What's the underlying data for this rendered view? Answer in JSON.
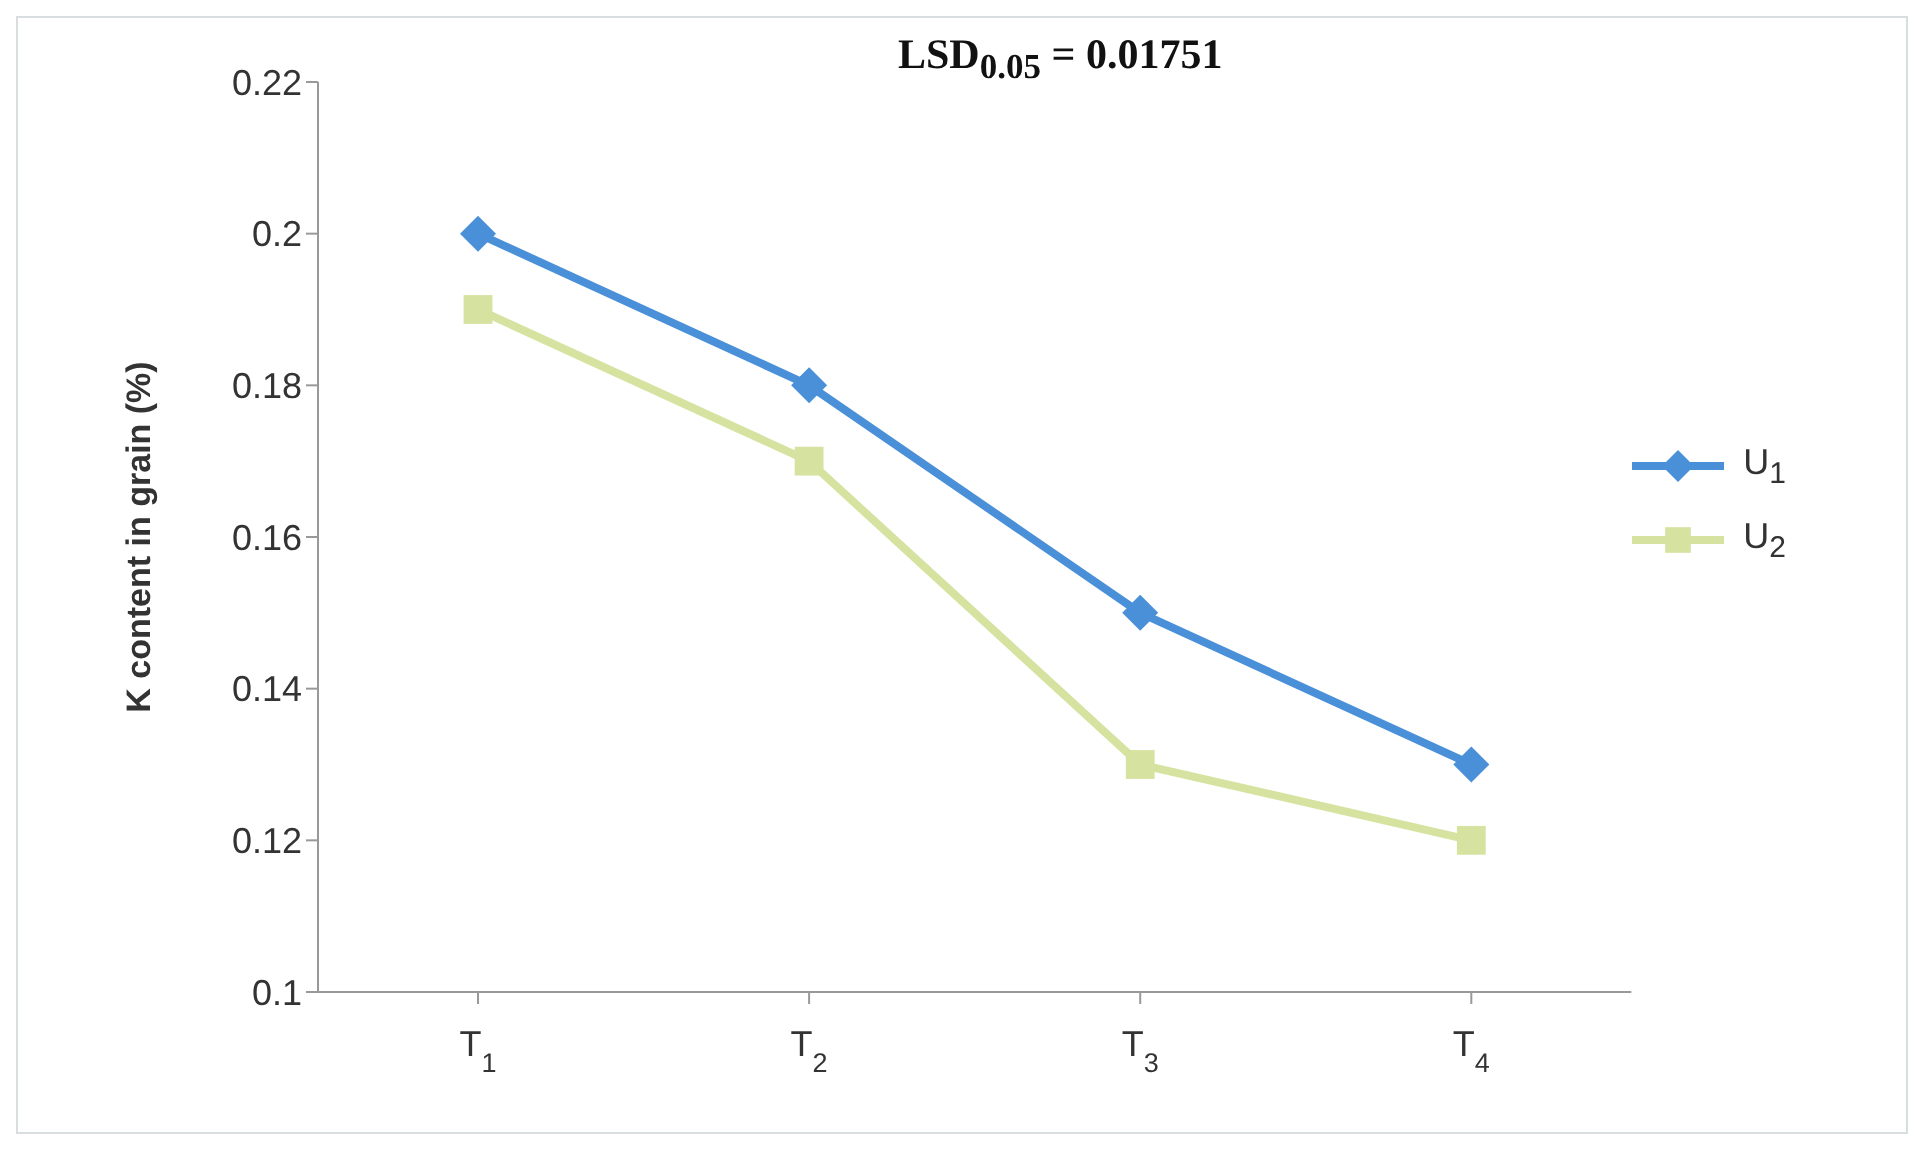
{
  "chart_data": {
    "type": "line",
    "ylabel": "K content in grain (%)",
    "annotations": [
      "LSD$_{0.05}$ = 0.01751"
    ],
    "categories": [
      "T$_{1}$",
      "T$_{2}$",
      "T$_{3}$",
      "T$_{4}$"
    ],
    "series": [
      {
        "name": "U$_{1}$",
        "color": "#4a90d9",
        "marker": "diamond",
        "values": [
          0.2,
          0.18,
          0.15,
          0.13
        ]
      },
      {
        "name": "U$_{2}$",
        "color": "#d6e2a0",
        "marker": "square",
        "values": [
          0.19,
          0.17,
          0.13,
          0.12
        ]
      }
    ],
    "ylim": [
      0.1,
      0.22
    ],
    "yticks": [
      0.1,
      0.12,
      0.14,
      0.16,
      0.18,
      0.2,
      0.22
    ],
    "grid": false,
    "legend": "right"
  }
}
